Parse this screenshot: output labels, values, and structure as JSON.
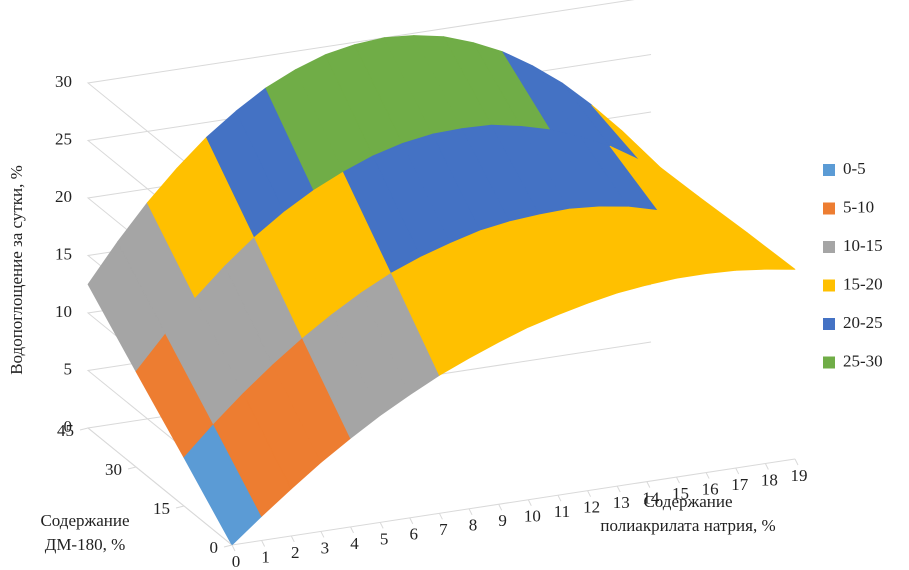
{
  "chart_data": {
    "type": "surface",
    "zlabel": "Водопоглощение за сутки, %",
    "xlabel": [
      "Содержание",
      "полиакрилата натрия, %"
    ],
    "ylabel": [
      "Содержание",
      "ДМ-180, %"
    ],
    "xticks": [
      0,
      1,
      2,
      3,
      4,
      5,
      6,
      7,
      8,
      9,
      10,
      11,
      12,
      13,
      14,
      15,
      16,
      17,
      18,
      19
    ],
    "xlim": [
      0,
      19
    ],
    "yticks": [
      0,
      15,
      30,
      45
    ],
    "ylim": [
      0,
      45
    ],
    "zticks": [
      0,
      5,
      10,
      15,
      20,
      25,
      30
    ],
    "zlim": [
      0,
      30
    ],
    "grid": true,
    "legend": "right",
    "bands": [
      {
        "name": "0-5",
        "color": "#5b9bd5"
      },
      {
        "name": "5-10",
        "color": "#ed7d31"
      },
      {
        "name": "10-15",
        "color": "#a5a5a5"
      },
      {
        "name": "15-20",
        "color": "#ffc000"
      },
      {
        "name": "20-25",
        "color": "#4472c4"
      },
      {
        "name": "25-30",
        "color": "#70ad47"
      }
    ],
    "values": [
      [
        0,
        2.1,
        4.1,
        6.0,
        7.7,
        9.3,
        10.7,
        12.0,
        13.1,
        14.1,
        15,
        15.7,
        16.3,
        16.8,
        17.1,
        17.3,
        17.3,
        17.2,
        16.9,
        16.5
      ],
      [
        4.2,
        6.7,
        9.0,
        11.1,
        13.0,
        14.7,
        16.2,
        17.5,
        18.5,
        19.3,
        20,
        20.4,
        20.6,
        20.7,
        20.5,
        20.1,
        19.4,
        18.6,
        17.5,
        16.3
      ],
      [
        8.3,
        11.2,
        13.9,
        16.3,
        18.4,
        20.2,
        21.7,
        22.9,
        23.9,
        24.6,
        25,
        25.1,
        25.0,
        24.5,
        23.8,
        22.8,
        21.6,
        20.0,
        18.2,
        16.0
      ],
      [
        12.5,
        15.8,
        18.8,
        21.4,
        23.7,
        25.6,
        27.2,
        28.4,
        29.3,
        29.8,
        30,
        29.8,
        29.3,
        28.4,
        27.2,
        25.6,
        23.7,
        21.4,
        18.8,
        15.8
      ]
    ]
  }
}
